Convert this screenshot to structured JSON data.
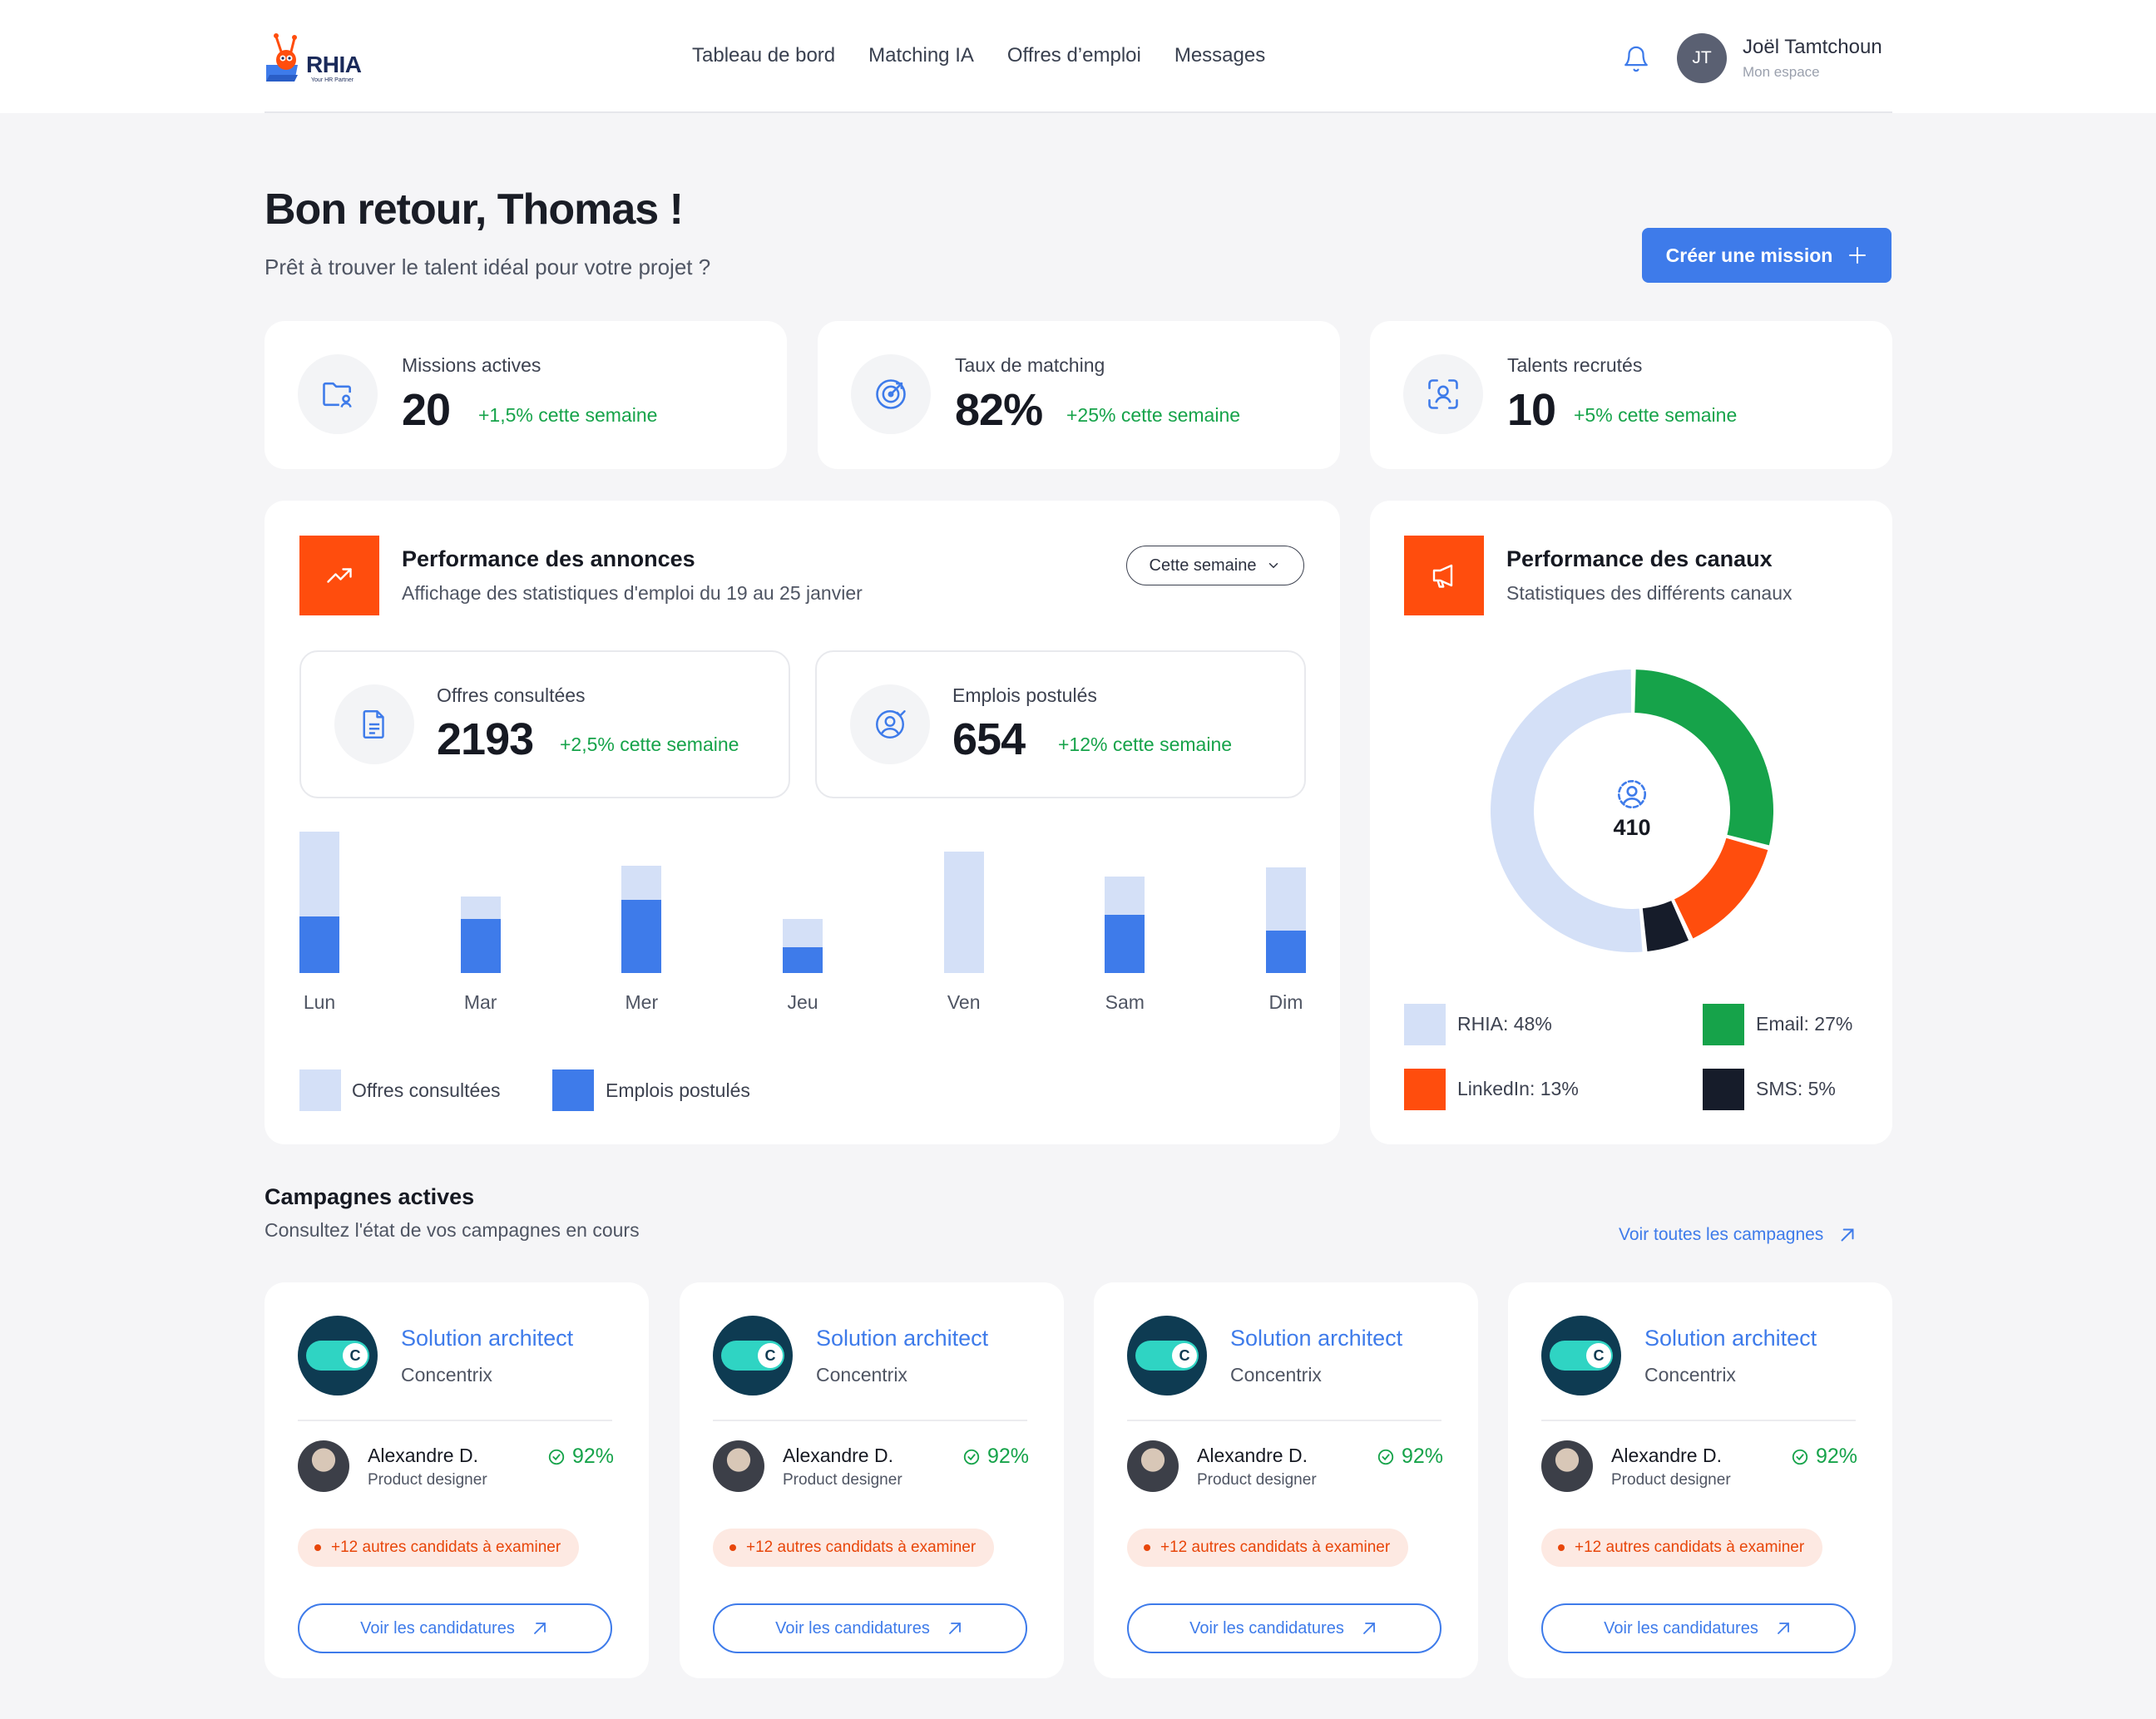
{
  "brand": {
    "logo_text": "RHIA",
    "logo_tagline": "Your HR Partner",
    "accent": "#3e7bea",
    "orange": "#ff4d0d",
    "green": "#16a34a"
  },
  "nav": {
    "items": [
      "Tableau de bord",
      "Matching IA",
      "Offres d’emploi",
      "Messages"
    ]
  },
  "user": {
    "initials": "JT",
    "name": "Joël Tamtchoun",
    "subtitle": "Mon espace"
  },
  "greeting": {
    "title": "Bon retour, Thomas !",
    "subtitle": "Prêt à trouver le talent idéal pour votre projet ?"
  },
  "create_button": "Créer une mission",
  "kpis": [
    {
      "label": "Missions actives",
      "value": "20",
      "delta": "+1,5% cette semaine",
      "icon": "folder-user-icon"
    },
    {
      "label": "Taux de matching",
      "value": "82%",
      "delta": "+25% cette semaine",
      "icon": "target-icon"
    },
    {
      "label": "Talents recrutés",
      "value": "10",
      "delta": "+5% cette semaine",
      "icon": "scan-user-icon"
    }
  ],
  "ads": {
    "title": "Performance des annonces",
    "subtitle": "Affichage des statistiques d'emploi du 19 au 25 janvier",
    "period": "Cette semaine",
    "stats": [
      {
        "label": "Offres consultées",
        "value": "2193",
        "delta": "+2,5% cette semaine"
      },
      {
        "label": "Emplois postulés",
        "value": "654",
        "delta": "+12% cette semaine"
      }
    ],
    "legend": [
      "Offres consultées",
      "Emplois postulés"
    ]
  },
  "channels": {
    "title": "Performance des canaux",
    "subtitle": "Statistiques des différents canaux",
    "total": "410",
    "legend": [
      "RHIA: 48%",
      "Email: 27%",
      "LinkedIn: 13%",
      "SMS: 5%"
    ]
  },
  "chart_data": [
    {
      "type": "bar",
      "categories": [
        "Lun",
        "Mar",
        "Mer",
        "Jeu",
        "Ven",
        "Sam",
        "Dim"
      ],
      "series": [
        {
          "name": "Offres consultées",
          "values": [
            100,
            54,
            76,
            38,
            86,
            68,
            75
          ],
          "color": "#d4e0f7"
        },
        {
          "name": "Emplois postulés",
          "values": [
            40,
            38,
            52,
            18,
            0,
            41,
            30
          ],
          "color": "#3e7bea"
        }
      ],
      "ylim": [
        0,
        100
      ]
    },
    {
      "type": "pie",
      "donut": true,
      "labels": [
        "Email",
        "LinkedIn",
        "SMS",
        "RHIA"
      ],
      "values": [
        27,
        13,
        5,
        48
      ],
      "colors": [
        "#16a34a",
        "#ff4d0d",
        "#161c2a",
        "#d4e0f7"
      ]
    }
  ],
  "campaigns": {
    "title": "Campagnes actives",
    "subtitle": "Consultez l'état de vos campagnes en cours",
    "see_all": "Voir toutes les campagnes",
    "items": [
      {
        "role": "Solution architect",
        "company": "Concentrix",
        "logo_letter": "C",
        "candidate": "Alexandre D.",
        "candidate_role": "Product designer",
        "score": "92%",
        "pending": "+12 autres candidats à examiner",
        "button": "Voir les candidatures"
      },
      {
        "role": "Solution architect",
        "company": "Concentrix",
        "logo_letter": "C",
        "candidate": "Alexandre D.",
        "candidate_role": "Product designer",
        "score": "92%",
        "pending": "+12 autres candidats à examiner",
        "button": "Voir les candidatures"
      },
      {
        "role": "Solution architect",
        "company": "Concentrix",
        "logo_letter": "C",
        "candidate": "Alexandre D.",
        "candidate_role": "Product designer",
        "score": "92%",
        "pending": "+12 autres candidats à examiner",
        "button": "Voir les candidatures"
      },
      {
        "role": "Solution architect",
        "company": "Concentrix",
        "logo_letter": "C",
        "candidate": "Alexandre D.",
        "candidate_role": "Product designer",
        "score": "92%",
        "pending": "+12 autres candidats à examiner",
        "button": "Voir les candidatures"
      }
    ]
  }
}
